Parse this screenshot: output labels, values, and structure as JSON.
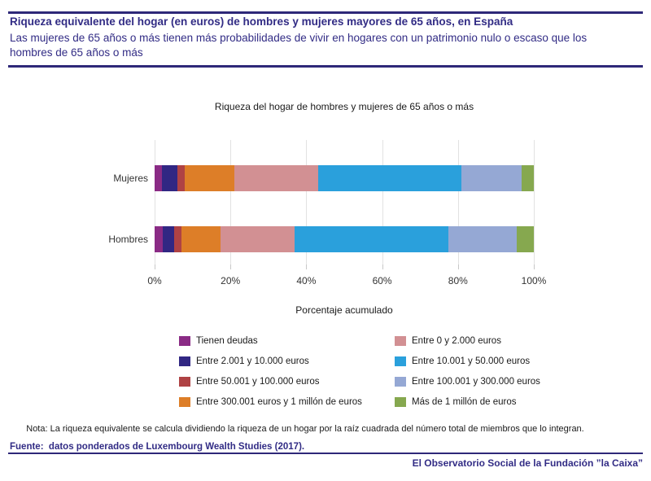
{
  "header": {
    "title": "Riqueza equivalente del hogar (en euros) de hombres y mujeres mayores de 65 años, en España",
    "subtitle": "Las mujeres de 65 años o más tienen más probabilidades de vivir en hogares con un patrimonio nulo o escaso que los hombres de 65 años o más",
    "accent_color": "#2e2878"
  },
  "chart_data": {
    "type": "bar",
    "orientation": "horizontal-stacked",
    "title": "Riqueza del hogar de hombres y mujeres de 65 años o más",
    "categories": [
      "Mujeres",
      "Hombres"
    ],
    "xlabel": "Porcentaje acumulado",
    "xlim": [
      0,
      100
    ],
    "x_ticks": [
      {
        "value": 0,
        "label": "0%"
      },
      {
        "value": 20,
        "label": "20%"
      },
      {
        "value": 40,
        "label": "40%"
      },
      {
        "value": 60,
        "label": "60%"
      },
      {
        "value": 80,
        "label": "80%"
      },
      {
        "value": 100,
        "label": "100%"
      }
    ],
    "grid": "vertical-light-gray",
    "legend_position": "bottom-two-columns",
    "series": [
      {
        "name": "Tienen deudas",
        "color": "#8a2b85",
        "values": [
          2.0,
          2.1
        ]
      },
      {
        "name": "Entre 2.001 y 10.000 euros",
        "color": "#312783",
        "values": [
          4.1,
          3.0
        ]
      },
      {
        "name": "Entre 50.001 y 100.000 euros",
        "color": "#af4244",
        "values": [
          1.9,
          2.0
        ]
      },
      {
        "name": "Entre 300.001 euros y 1 millón de euros",
        "color": "#dd7e28",
        "values": [
          13.0,
          10.2
        ]
      },
      {
        "name": "Entre 0 y 2.000 euros",
        "color": "#d29093",
        "values": [
          22.1,
          19.7
        ]
      },
      {
        "name": "Entre 10.001 y 50.000 euros",
        "color": "#2aa0dc",
        "values": [
          37.8,
          40.4
        ]
      },
      {
        "name": "Entre 100.001 y 300.000 euros",
        "color": "#95a8d4",
        "values": [
          15.8,
          18.0
        ]
      },
      {
        "name": "Más de 1 millón de euros",
        "color": "#86a84f",
        "values": [
          3.3,
          4.6
        ]
      }
    ]
  },
  "note": "Nota: La riqueza equivalente se calcula dividiendo la riqueza de un hogar por la raíz cuadrada del número total de miembros que lo integran.",
  "source": "Fuente:  datos ponderados de Luxembourg Wealth Studies (2017).",
  "footer": "El Observatorio Social de la Fundación ”la Caixa”"
}
